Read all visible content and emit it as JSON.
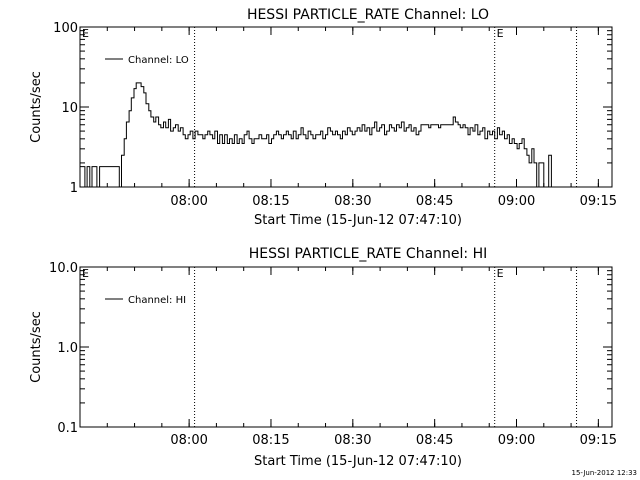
{
  "chart_data": [
    {
      "type": "line",
      "title": "HESSI PARTICLE_RATE Channel: LO",
      "xlabel": "Start Time (15-Jun-12 07:47:10)",
      "ylabel": "Counts/sec",
      "yscale": "log",
      "ylim": [
        1,
        100
      ],
      "y_tick_values": [
        1,
        10,
        100
      ],
      "y_tick_labels": [
        "1",
        "10",
        "100"
      ],
      "xlim_min": [
        -7.0,
        90.5
      ],
      "x_tick_values": [
        13,
        28,
        43,
        58,
        73,
        88
      ],
      "x_tick_labels": [
        "08:00",
        "08:15",
        "08:30",
        "08:45",
        "09:00",
        "09:15"
      ],
      "x_unit": "minutes after 07:47",
      "legend": {
        "label": "Channel: LO",
        "position": "top-left"
      },
      "markers": [
        {
          "x_min": 14.0,
          "label": ""
        },
        {
          "x_min": 69.0,
          "label": "E"
        },
        {
          "x_min": 84.0,
          "label": ""
        }
      ],
      "corner_label": "E",
      "series": [
        {
          "name": "Channel: LO",
          "step": true,
          "x_min": [
            -7.0,
            -6.6,
            -6.1,
            -5.7,
            -5.2,
            -4.8,
            -4.3,
            -3.9,
            -3.4,
            -3.0,
            -2.5,
            -2.1,
            -1.6,
            -1.2,
            -0.7,
            -0.3,
            0.2,
            0.6,
            1.1,
            1.5,
            2.0,
            2.4,
            2.9,
            3.3,
            3.8,
            4.2,
            4.7,
            5.1,
            5.6,
            6.0,
            6.5,
            6.9,
            7.4,
            7.8,
            8.3,
            8.7,
            9.2,
            9.6,
            10.1,
            10.5,
            11.0,
            11.4,
            11.9,
            12.3,
            12.8,
            13.2,
            13.7,
            14.1,
            14.6,
            15.0,
            15.5,
            15.9,
            16.4,
            16.8,
            17.3,
            17.7,
            18.2,
            18.6,
            19.1,
            19.5,
            20.0,
            20.4,
            20.9,
            21.3,
            21.8,
            22.2,
            22.7,
            23.1,
            23.6,
            24.0,
            24.5,
            24.9,
            25.4,
            25.8,
            26.3,
            26.7,
            27.2,
            27.6,
            28.1,
            28.5,
            29.0,
            29.4,
            29.9,
            30.3,
            30.8,
            31.2,
            31.7,
            32.1,
            32.6,
            33.0,
            33.5,
            33.9,
            34.4,
            34.8,
            35.3,
            35.7,
            36.2,
            36.6,
            37.1,
            37.5,
            38.0,
            38.4,
            38.9,
            39.3,
            39.8,
            40.2,
            40.7,
            41.1,
            41.6,
            42.0,
            42.5,
            42.9,
            43.4,
            43.8,
            44.3,
            44.7,
            45.2,
            45.6,
            46.1,
            46.5,
            47.0,
            47.4,
            47.9,
            48.3,
            48.8,
            49.2,
            49.7,
            50.1,
            50.6,
            51.0,
            51.5,
            51.9,
            52.4,
            52.8,
            53.3,
            53.7,
            54.2,
            54.6,
            55.1,
            55.5,
            56.0,
            56.4,
            56.9,
            57.3,
            57.8,
            58.2,
            58.7,
            59.1,
            59.6,
            60.0,
            60.5,
            60.9,
            61.4,
            61.8,
            62.3,
            62.7,
            63.2,
            63.6,
            64.1,
            64.5,
            65.0,
            65.4,
            65.9,
            66.3,
            66.8,
            67.2,
            67.7,
            68.1,
            68.6,
            69.0,
            69.5,
            69.9,
            70.4,
            70.8,
            71.3,
            71.7,
            72.2,
            72.6,
            73.1,
            73.5,
            74.0,
            74.4,
            74.9,
            75.3,
            75.8,
            76.2,
            76.7,
            77.1,
            77.6,
            78.0,
            78.5,
            78.9,
            79.4
          ],
          "y": [
            1.8,
            1.8,
            1.0,
            1.8,
            1.0,
            1.8,
            1.8,
            1.0,
            1.8,
            1.8,
            1.8,
            1.8,
            1.8,
            1.8,
            1.8,
            1.8,
            1.0,
            2.5,
            4.0,
            6.5,
            9.0,
            13.0,
            17.0,
            20.0,
            20.0,
            18.0,
            15.0,
            11.0,
            9.0,
            7.5,
            6.5,
            7.5,
            6.0,
            5.5,
            6.5,
            5.5,
            7.0,
            5.0,
            5.5,
            6.0,
            5.0,
            5.5,
            4.5,
            4.0,
            4.5,
            5.0,
            4.0,
            5.0,
            4.5,
            4.5,
            4.0,
            4.5,
            5.0,
            4.5,
            4.0,
            5.0,
            3.5,
            4.5,
            3.5,
            4.5,
            3.5,
            4.0,
            3.5,
            4.5,
            3.5,
            4.0,
            3.5,
            4.5,
            5.0,
            4.0,
            3.5,
            4.0,
            4.0,
            4.5,
            4.0,
            4.0,
            4.5,
            3.5,
            4.0,
            4.5,
            5.0,
            4.5,
            4.0,
            4.5,
            5.0,
            4.5,
            4.0,
            5.0,
            4.0,
            4.5,
            5.5,
            4.5,
            4.0,
            5.0,
            4.5,
            4.0,
            4.5,
            4.5,
            5.0,
            4.0,
            4.5,
            5.5,
            5.0,
            4.5,
            5.0,
            4.5,
            4.0,
            5.0,
            4.5,
            5.5,
            5.0,
            4.5,
            5.0,
            5.5,
            5.0,
            6.0,
            5.0,
            5.5,
            4.5,
            5.5,
            6.5,
            5.0,
            5.5,
            6.0,
            4.5,
            5.0,
            6.0,
            5.5,
            5.0,
            6.0,
            5.5,
            6.5,
            5.0,
            5.5,
            6.0,
            5.0,
            5.5,
            4.5,
            5.0,
            6.0,
            6.0,
            6.0,
            5.5,
            6.0,
            6.0,
            6.0,
            5.5,
            6.0,
            6.0,
            6.0,
            6.0,
            6.0,
            7.5,
            6.5,
            6.0,
            5.5,
            6.0,
            5.5,
            4.5,
            5.5,
            5.0,
            6.0,
            4.5,
            5.0,
            5.5,
            4.0,
            5.0,
            4.5,
            5.0,
            4.0,
            5.5,
            4.5,
            5.0,
            4.0,
            4.5,
            3.5,
            4.0,
            3.5,
            3.0,
            3.5,
            4.0,
            3.0,
            2.5,
            2.0,
            3.0,
            2.0,
            1.0,
            2.0,
            2.0,
            1.0,
            1.0,
            2.5,
            1.0
          ]
        }
      ]
    },
    {
      "type": "line",
      "title": "HESSI PARTICLE_RATE Channel: HI",
      "xlabel": "Start Time (15-Jun-12 07:47:10)",
      "ylabel": "Counts/sec",
      "yscale": "log",
      "ylim": [
        0.1,
        10
      ],
      "y_tick_values": [
        0.1,
        1,
        10
      ],
      "y_tick_labels": [
        "0.1",
        "1.0",
        "10.0"
      ],
      "xlim_min": [
        -7.0,
        90.5
      ],
      "x_tick_values": [
        13,
        28,
        43,
        58,
        73,
        88
      ],
      "x_tick_labels": [
        "08:00",
        "08:15",
        "08:30",
        "08:45",
        "09:00",
        "09:15"
      ],
      "x_unit": "minutes after 07:47",
      "legend": {
        "label": "Channel: HI",
        "position": "top-left"
      },
      "markers": [
        {
          "x_min": 14.0,
          "label": ""
        },
        {
          "x_min": 69.0,
          "label": "E"
        },
        {
          "x_min": 84.0,
          "label": ""
        }
      ],
      "corner_label": "E",
      "series": [
        {
          "name": "Channel: HI",
          "step": true,
          "x_min": [],
          "y": []
        }
      ]
    }
  ],
  "footer": {
    "timestamp": "15-Jun-2012 12:33"
  }
}
